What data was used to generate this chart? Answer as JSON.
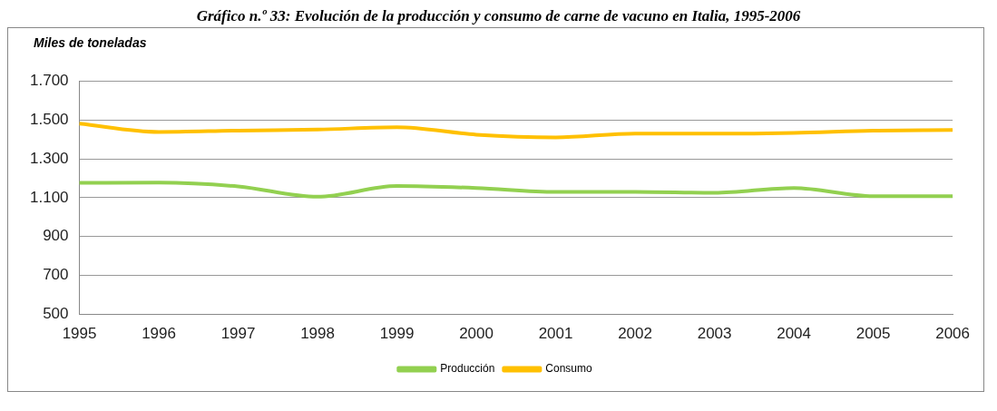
{
  "chart_data": {
    "type": "line",
    "title": "Gráfico n.º 33: Evolución de la producción y consumo de carne de vacuno en Italia, 1995-2006",
    "ylabel": "Miles de toneladas",
    "categories": [
      "1995",
      "1996",
      "1997",
      "1998",
      "1999",
      "2000",
      "2001",
      "2002",
      "2003",
      "2004",
      "2005",
      "2006"
    ],
    "series": [
      {
        "name": "Producción",
        "color": "#92d050",
        "values": [
          1176,
          1178,
          1158,
          1105,
          1160,
          1150,
          1130,
          1130,
          1125,
          1150,
          1108,
          1108
        ]
      },
      {
        "name": "Consumo",
        "color": "#ffc000",
        "values": [
          1481,
          1438,
          1445,
          1450,
          1462,
          1424,
          1410,
          1429,
          1429,
          1433,
          1445,
          1448
        ]
      }
    ],
    "ylim": [
      500,
      1700
    ],
    "yticks": [
      {
        "value": 500,
        "label": "500"
      },
      {
        "value": 700,
        "label": "700"
      },
      {
        "value": 900,
        "label": "900"
      },
      {
        "value": 1100,
        "label": "1.100"
      },
      {
        "value": 1300,
        "label": "1.300"
      },
      {
        "value": 1500,
        "label": "1.500"
      },
      {
        "value": 1700,
        "label": "1.700"
      }
    ],
    "grid": "y",
    "legend": "bottom",
    "marker": "none",
    "line_style": "solid"
  }
}
